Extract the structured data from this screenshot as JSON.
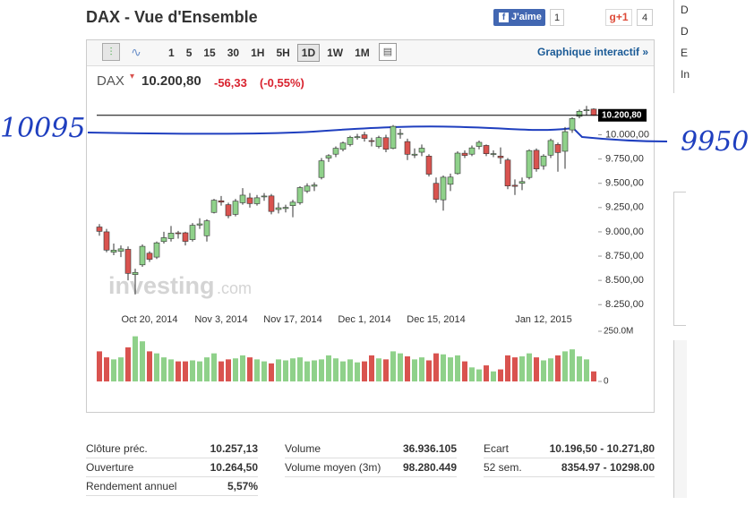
{
  "header": {
    "title": "DAX - Vue d'Ensemble",
    "like": "J'aime",
    "like_count": "1",
    "gplus": "g+1",
    "gplus_count": "4"
  },
  "toolbar": {
    "intervals": [
      "1",
      "5",
      "15",
      "30",
      "1H",
      "5H",
      "1D",
      "1W",
      "1M"
    ],
    "active": "1D",
    "link": "Graphique interactif »"
  },
  "quote": {
    "symbol": "DAX",
    "price": "10.200,80",
    "change": "-56,33",
    "change_pct": "(-0,55%)"
  },
  "chart_data": {
    "type": "candlestick",
    "categories": [
      null,
      null,
      null,
      null,
      null,
      null,
      null,
      "Oct 20, 2014",
      null,
      null,
      null,
      null,
      null,
      null,
      null,
      null,
      null,
      "Nov 3, 2014",
      null,
      null,
      null,
      null,
      null,
      null,
      null,
      null,
      null,
      "Nov 17, 2014",
      null,
      null,
      null,
      null,
      null,
      null,
      null,
      null,
      null,
      "Dec 1, 2014",
      null,
      null,
      null,
      null,
      null,
      null,
      null,
      null,
      null,
      "Dec 15, 2014",
      null,
      null,
      null,
      null,
      null,
      null,
      null,
      null,
      null,
      null,
      null,
      null,
      null,
      null,
      "Jan 12, 2015",
      null,
      null,
      null,
      null,
      null,
      null,
      null
    ],
    "open": [
      9050,
      9000,
      8790,
      8800,
      8820,
      8560,
      8660,
      8780,
      8740,
      8900,
      8930,
      8990,
      8990,
      8920,
      9070,
      8960,
      9200,
      9320,
      9280,
      9180,
      9300,
      9350,
      9290,
      9360,
      9370,
      9230,
      9240,
      9270,
      9300,
      9420,
      9470,
      9560,
      9760,
      9800,
      9850,
      9900,
      9970,
      10000,
      9940,
      9880,
      9970,
      9860,
      10010,
      9930,
      9790,
      9820,
      9780,
      9500,
      9330,
      9490,
      9600,
      9810,
      9800,
      9880,
      9890,
      9800,
      9780,
      9740,
      9480,
      9500,
      9560,
      9840,
      9680,
      9790,
      9900,
      9830,
      10050,
      10190,
      10250,
      10264.5
    ],
    "high": [
      9080,
      9030,
      8880,
      8860,
      8850,
      8620,
      8870,
      8800,
      8900,
      9000,
      9060,
      9010,
      9000,
      9090,
      9140,
      9130,
      9340,
      9370,
      9300,
      9340,
      9450,
      9400,
      9380,
      9400,
      9390,
      9300,
      9280,
      9330,
      9470,
      9500,
      9510,
      9760,
      9800,
      9880,
      9930,
      9990,
      10010,
      10030,
      9970,
      9990,
      10000,
      10100,
      10060,
      9960,
      9860,
      9900,
      9800,
      9560,
      9580,
      9600,
      9830,
      9840,
      9890,
      9940,
      9900,
      9840,
      9870,
      9760,
      9540,
      9560,
      9850,
      9860,
      9800,
      9960,
      9920,
      10080,
      10180,
      10260,
      10298,
      10271.8
    ],
    "low": [
      8960,
      8790,
      8760,
      8740,
      8500,
      8355,
      8640,
      8690,
      8720,
      8880,
      8900,
      8930,
      8860,
      8900,
      9030,
      8900,
      9190,
      9270,
      9140,
      9160,
      9280,
      9250,
      9270,
      9320,
      9180,
      9190,
      9200,
      9150,
      9280,
      9400,
      9420,
      9540,
      9720,
      9770,
      9830,
      9880,
      9950,
      9930,
      9880,
      9860,
      9820,
      9850,
      9960,
      9740,
      9760,
      9780,
      9570,
      9300,
      9219,
      9420,
      9590,
      9760,
      9780,
      9850,
      9780,
      9770,
      9700,
      9440,
      9380,
      9430,
      9540,
      9620,
      9640,
      9760,
      9620,
      9650,
      10020,
      10170,
      10200,
      10196.5
    ],
    "close": [
      9005,
      8812,
      8812,
      8825,
      8572,
      8582,
      8851,
      8717,
      8887,
      8940,
      8987,
      8988,
      8902,
      9068,
      9082,
      9114,
      9326,
      9306,
      9166,
      9316,
      9378,
      9291,
      9351,
      9369,
      9210,
      9248,
      9252,
      9306,
      9456,
      9472,
      9483,
      9732,
      9785,
      9861,
      9915,
      9974,
      9980,
      9963,
      9935,
      9971,
      9851,
      10087,
      10014,
      9799,
      9800,
      9862,
      9594,
      9335,
      9563,
      9564,
      9811,
      9787,
      9865,
      9922,
      9805,
      9806,
      9764,
      9473,
      9469,
      9518,
      9837,
      9648,
      9781,
      9941,
      9817,
      10032,
      10167,
      10242,
      10257,
      10200.8
    ],
    "volume": [
      150,
      120,
      110,
      120,
      170,
      225,
      200,
      150,
      140,
      120,
      110,
      100,
      100,
      105,
      100,
      120,
      140,
      100,
      110,
      115,
      130,
      120,
      110,
      100,
      90,
      110,
      105,
      115,
      120,
      100,
      105,
      110,
      130,
      115,
      100,
      110,
      95,
      100,
      130,
      115,
      110,
      150,
      140,
      125,
      110,
      120,
      105,
      140,
      135,
      120,
      130,
      100,
      70,
      60,
      80,
      50,
      60,
      130,
      120,
      125,
      140,
      120,
      105,
      115,
      130,
      150,
      160,
      125,
      110,
      50
    ],
    "ylim": [
      8160,
      10300
    ],
    "yticks": [
      {
        "value": 8250,
        "label": "8.250,00"
      },
      {
        "value": 8500,
        "label": "8.500,00"
      },
      {
        "value": 8750,
        "label": "8.750,00"
      },
      {
        "value": 9000,
        "label": "9.000,00"
      },
      {
        "value": 9250,
        "label": "9.250,00"
      },
      {
        "value": 9500,
        "label": "9.500,00"
      },
      {
        "value": 9750,
        "label": "9.750,00"
      },
      {
        "value": 10000,
        "label": "10.000,00"
      }
    ],
    "volume_ylim": [
      0,
      250
    ],
    "volume_yticks": [
      0,
      {
        "value": 250,
        "label": "250.0M"
      }
    ],
    "last_price": 10200.8,
    "last_price_label": "10.200,80",
    "up_color": "#8fd18a",
    "down_color": "#d9534f",
    "watermark": [
      "investing",
      ".com"
    ]
  },
  "stats": {
    "columns": [
      {
        "rows": [
          [
            "Clôture préc.",
            "10.257,13"
          ],
          [
            "Ouverture",
            "10.264,50"
          ],
          [
            "Rendement annuel",
            "5,57%"
          ]
        ]
      },
      {
        "rows": [
          [
            "Volume",
            "36.936.105"
          ],
          [
            "Volume moyen (3m)",
            "98.280.449"
          ]
        ]
      },
      {
        "rows": [
          [
            "Ecart",
            "10.196,50 - 10.271,80"
          ],
          [
            "52 sem.",
            "8354.97 - 10298.00"
          ]
        ]
      }
    ]
  },
  "annotations": [
    "10095",
    "9950"
  ],
  "sidebar": [
    "D",
    "D",
    "E",
    "In"
  ]
}
